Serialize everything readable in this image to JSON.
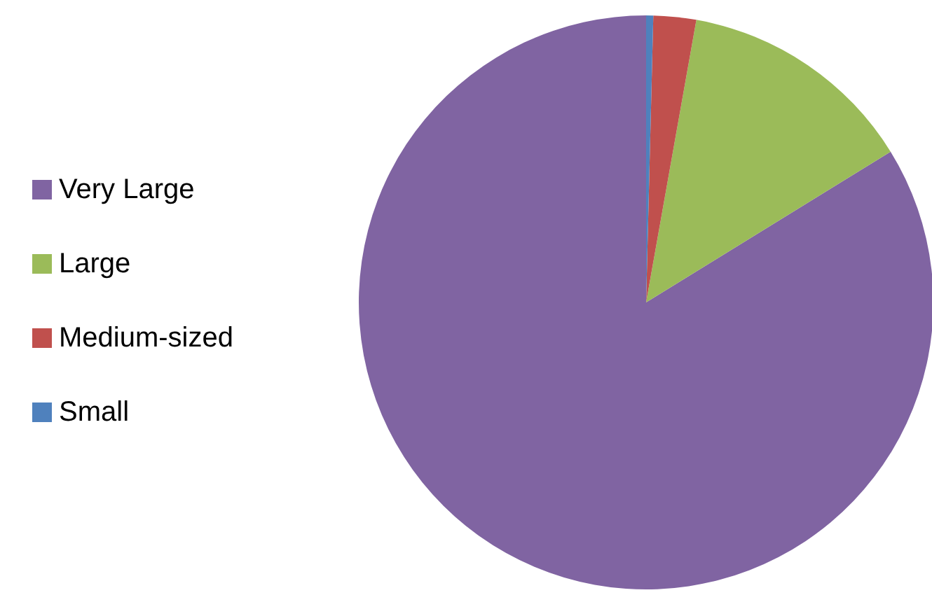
{
  "chart_data": {
    "type": "pie",
    "categories": [
      "Very Large",
      "Large",
      "Medium-sized",
      "Small"
    ],
    "values": [
      83.8,
      13.4,
      2.4,
      0.4
    ],
    "colors": [
      "#8064a2",
      "#9bbb59",
      "#c0504d",
      "#4f81bd"
    ],
    "legend": "left"
  }
}
